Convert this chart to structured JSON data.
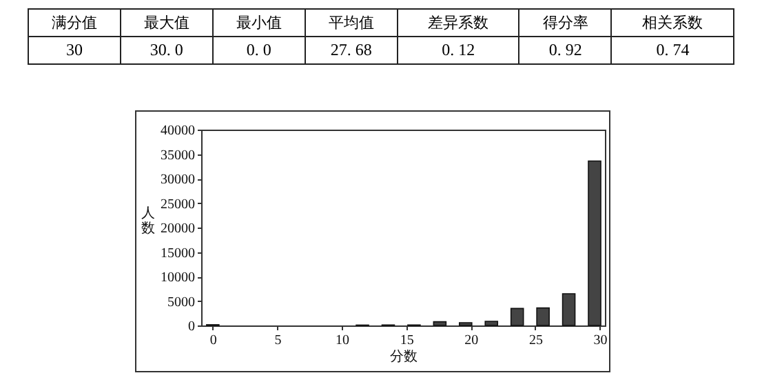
{
  "chart_data": [
    {
      "type": "other",
      "categories": [
        "满分值",
        "最大值",
        "最小值",
        "平均值",
        "差异系数",
        "得分率",
        "相关系数"
      ],
      "value_labels": [
        "30",
        "30. 0",
        "0. 0",
        "27. 68",
        "0. 12",
        "0. 92",
        "0. 74"
      ]
    },
    {
      "type": "bar",
      "xlabel": "分数",
      "ylabel": "人数",
      "x": [
        0,
        11.6,
        13.6,
        15.6,
        17.6,
        19.6,
        21.6,
        23.6,
        25.6,
        27.6,
        29.6
      ],
      "values": [
        150,
        80,
        100,
        100,
        760,
        560,
        850,
        3470,
        3580,
        6480,
        33600
      ],
      "color": "#444444",
      "xlim": [
        -0.9,
        30.4
      ],
      "xticks": [
        0,
        5,
        10,
        15,
        20,
        25,
        30
      ],
      "ylim": [
        0,
        40000
      ],
      "yticks": [
        0,
        5000,
        10000,
        15000,
        20000,
        25000,
        30000,
        35000,
        40000
      ],
      "grid": false
    }
  ]
}
